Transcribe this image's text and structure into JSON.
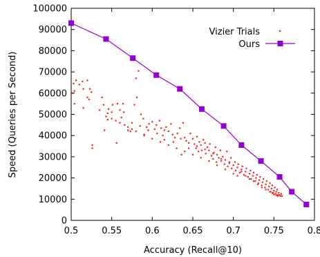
{
  "chart_data": {
    "type": "scatter",
    "xlabel": "Accuracy (Recall@10)",
    "ylabel": "Speed (Queries per Second)",
    "xlim": [
      0.5,
      0.8
    ],
    "ylim": [
      0,
      100000
    ],
    "x_ticks": [
      "0.5",
      "0.55",
      "0.6",
      "0.65",
      "0.7",
      "0.75",
      "0.8"
    ],
    "y_ticks": [
      "0",
      "10000",
      "20000",
      "30000",
      "40000",
      "50000",
      "60000",
      "70000",
      "80000",
      "90000",
      "100000"
    ],
    "grid": false,
    "legend_position": "top-right",
    "series": [
      {
        "name": "Vizier Trials",
        "style": "points",
        "color": "#e8291c",
        "points": [
          [
            0.502,
            60000
          ],
          [
            0.503,
            64500
          ],
          [
            0.504,
            55000
          ],
          [
            0.504,
            61000
          ],
          [
            0.506,
            66000
          ],
          [
            0.51,
            64000
          ],
          [
            0.514,
            65500
          ],
          [
            0.515,
            53000
          ],
          [
            0.52,
            66000
          ],
          [
            0.522,
            57000
          ],
          [
            0.523,
            62000
          ],
          [
            0.525,
            60500
          ],
          [
            0.526,
            35500
          ],
          [
            0.526,
            34000
          ],
          [
            0.538,
            58000
          ],
          [
            0.54,
            54500
          ],
          [
            0.541,
            42500
          ],
          [
            0.543,
            49000
          ],
          [
            0.545,
            47500
          ],
          [
            0.546,
            52500
          ],
          [
            0.55,
            51000
          ],
          [
            0.551,
            54500
          ],
          [
            0.556,
            36500
          ],
          [
            0.557,
            55000
          ],
          [
            0.56,
            52000
          ],
          [
            0.562,
            48500
          ],
          [
            0.564,
            55000
          ],
          [
            0.566,
            45000
          ],
          [
            0.57,
            42500
          ],
          [
            0.573,
            42000
          ],
          [
            0.575,
            43000
          ],
          [
            0.578,
            54500
          ],
          [
            0.58,
            67000
          ],
          [
            0.581,
            58000
          ],
          [
            0.583,
            70500
          ],
          [
            0.586,
            50000
          ],
          [
            0.589,
            48000
          ],
          [
            0.59,
            40500
          ],
          [
            0.593,
            44000
          ],
          [
            0.596,
            45500
          ],
          [
            0.6,
            46500
          ],
          [
            0.603,
            43000
          ],
          [
            0.606,
            41000
          ],
          [
            0.609,
            47000
          ],
          [
            0.611,
            43500
          ],
          [
            0.613,
            40000
          ],
          [
            0.615,
            38000
          ],
          [
            0.617,
            44000
          ],
          [
            0.62,
            42000
          ],
          [
            0.623,
            45500
          ],
          [
            0.626,
            37000
          ],
          [
            0.628,
            39000
          ],
          [
            0.631,
            41000
          ],
          [
            0.634,
            43500
          ],
          [
            0.636,
            31000
          ],
          [
            0.638,
            46000
          ],
          [
            0.64,
            39000
          ],
          [
            0.642,
            37500
          ],
          [
            0.645,
            34000
          ],
          [
            0.647,
            41000
          ],
          [
            0.65,
            38500
          ],
          [
            0.652,
            36000
          ],
          [
            0.654,
            34000
          ],
          [
            0.655,
            39500
          ],
          [
            0.657,
            32500
          ],
          [
            0.658,
            37000
          ],
          [
            0.66,
            35500
          ],
          [
            0.661,
            33000
          ],
          [
            0.663,
            38000
          ],
          [
            0.665,
            36500
          ],
          [
            0.666,
            31500
          ],
          [
            0.668,
            34500
          ],
          [
            0.67,
            33000
          ],
          [
            0.671,
            36000
          ],
          [
            0.673,
            30500
          ],
          [
            0.675,
            29000
          ],
          [
            0.676,
            32000
          ],
          [
            0.678,
            34500
          ],
          [
            0.679,
            27500
          ],
          [
            0.68,
            31000
          ],
          [
            0.682,
            29500
          ],
          [
            0.684,
            33000
          ],
          [
            0.685,
            28000
          ],
          [
            0.687,
            30000
          ],
          [
            0.689,
            26500
          ],
          [
            0.69,
            28500
          ],
          [
            0.692,
            32500
          ],
          [
            0.693,
            25500
          ],
          [
            0.695,
            27000
          ],
          [
            0.697,
            29500
          ],
          [
            0.698,
            24500
          ],
          [
            0.7,
            26000
          ],
          [
            0.702,
            27500
          ],
          [
            0.703,
            23500
          ],
          [
            0.705,
            25000
          ],
          [
            0.706,
            26500
          ],
          [
            0.708,
            22500
          ],
          [
            0.71,
            24000
          ],
          [
            0.711,
            25500
          ],
          [
            0.713,
            21500
          ],
          [
            0.715,
            23000
          ],
          [
            0.716,
            24500
          ],
          [
            0.718,
            20500
          ],
          [
            0.72,
            22000
          ],
          [
            0.721,
            23500
          ],
          [
            0.722,
            19500
          ],
          [
            0.724,
            21000
          ],
          [
            0.725,
            22500
          ],
          [
            0.727,
            18500
          ],
          [
            0.728,
            20000
          ],
          [
            0.729,
            21500
          ],
          [
            0.731,
            17500
          ],
          [
            0.732,
            19000
          ],
          [
            0.733,
            20500
          ],
          [
            0.735,
            16500
          ],
          [
            0.736,
            18000
          ],
          [
            0.737,
            19500
          ],
          [
            0.739,
            15500
          ],
          [
            0.74,
            17000
          ],
          [
            0.741,
            18500
          ],
          [
            0.743,
            14500
          ],
          [
            0.744,
            16000
          ],
          [
            0.745,
            17500
          ],
          [
            0.746,
            13500
          ],
          [
            0.747,
            15000
          ],
          [
            0.748,
            16500
          ],
          [
            0.749,
            13000
          ],
          [
            0.75,
            14000
          ],
          [
            0.751,
            15500
          ],
          [
            0.752,
            12500
          ],
          [
            0.753,
            13500
          ],
          [
            0.754,
            14500
          ],
          [
            0.755,
            12000
          ],
          [
            0.756,
            13000
          ],
          [
            0.757,
            12000
          ],
          [
            0.758,
            11500
          ],
          [
            0.759,
            12500
          ],
          [
            0.76,
            11500
          ],
          [
            0.755,
            11500
          ],
          [
            0.753,
            11800
          ],
          [
            0.75,
            12200
          ],
          [
            0.748,
            12800
          ],
          [
            0.7,
            22000
          ],
          [
            0.705,
            21000
          ],
          [
            0.69,
            24000
          ],
          [
            0.68,
            26000
          ],
          [
            0.67,
            28000
          ],
          [
            0.66,
            29500
          ],
          [
            0.65,
            31000
          ],
          [
            0.64,
            32500
          ],
          [
            0.63,
            34000
          ],
          [
            0.62,
            35500
          ],
          [
            0.61,
            37000
          ],
          [
            0.6,
            38500
          ],
          [
            0.59,
            40000
          ],
          [
            0.58,
            42000
          ],
          [
            0.57,
            44000
          ],
          [
            0.56,
            46000
          ],
          [
            0.55,
            48000
          ],
          [
            0.515,
            62000
          ],
          [
            0.52,
            58000
          ],
          [
            0.535,
            52000
          ],
          [
            0.545,
            50500
          ],
          [
            0.555,
            47000
          ],
          [
            0.565,
            51000
          ],
          [
            0.575,
            46000
          ],
          [
            0.585,
            44500
          ],
          [
            0.595,
            42500
          ],
          [
            0.605,
            45000
          ],
          [
            0.615,
            42500
          ],
          [
            0.625,
            40500
          ],
          [
            0.635,
            38500
          ],
          [
            0.645,
            36500
          ],
          [
            0.655,
            35000
          ],
          [
            0.665,
            33500
          ],
          [
            0.675,
            31500
          ],
          [
            0.685,
            29000
          ],
          [
            0.695,
            27500
          ],
          [
            0.71,
            23000
          ],
          [
            0.715,
            21000
          ],
          [
            0.72,
            19500
          ],
          [
            0.725,
            18500
          ],
          [
            0.73,
            17000
          ],
          [
            0.735,
            15500
          ],
          [
            0.74,
            14500
          ],
          [
            0.745,
            13500
          ]
        ]
      },
      {
        "name": "Ours",
        "style": "line+squares",
        "color": "#9400d3",
        "points": [
          [
            0.5,
            93000
          ],
          [
            0.543,
            85500
          ],
          [
            0.576,
            76500
          ],
          [
            0.605,
            68500
          ],
          [
            0.634,
            62000
          ],
          [
            0.661,
            52500
          ],
          [
            0.688,
            44500
          ],
          [
            0.71,
            35500
          ],
          [
            0.734,
            28000
          ],
          [
            0.757,
            20500
          ],
          [
            0.772,
            13500
          ],
          [
            0.79,
            7500
          ]
        ]
      }
    ]
  }
}
